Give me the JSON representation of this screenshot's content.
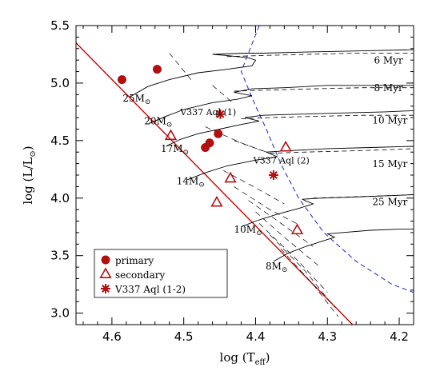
{
  "chart_data": {
    "type": "scatter",
    "title": "",
    "xlabel": "log (T",
    "xlabel_sub": "eff",
    "xlabel_close": ")",
    "ylabel": "log (L/L",
    "ylabel_close": ")",
    "xlim": [
      4.65,
      4.18
    ],
    "ylim": [
      2.9,
      5.5
    ],
    "x_reversed": true,
    "xticks": [
      4.6,
      4.5,
      4.4,
      4.3,
      4.2
    ],
    "xtick_labels": [
      "4.6",
      "4.5",
      "4.4",
      "4.3",
      "4.2"
    ],
    "yticks": [
      3.0,
      3.5,
      4.0,
      4.5,
      5.0,
      5.5
    ],
    "ytick_labels": [
      "3.0",
      "3.5",
      "4.0",
      "4.5",
      "5.0",
      "5.5"
    ],
    "colors": {
      "zams": "#cc0000",
      "points": "#b01010",
      "isochrone_guide": "#3333cc",
      "track": "#000000"
    },
    "zams_line": [
      [
        4.65,
        5.35
      ],
      [
        4.265,
        2.9
      ]
    ],
    "tracks": [
      {
        "mass_label": "25M",
        "label_at": [
          4.585,
          4.84
        ],
        "points": [
          [
            4.575,
            4.88
          ],
          [
            4.55,
            4.97
          ],
          [
            4.52,
            5.03
          ],
          [
            4.48,
            5.09
          ],
          [
            4.44,
            5.12
          ],
          [
            4.405,
            5.15
          ],
          [
            4.4,
            5.2
          ],
          [
            4.41,
            5.22
          ],
          [
            4.44,
            5.24
          ],
          [
            4.46,
            5.25
          ],
          [
            4.415,
            5.26
          ],
          [
            4.39,
            5.26
          ],
          [
            4.33,
            5.27
          ],
          [
            4.25,
            5.28
          ],
          [
            4.18,
            5.29
          ]
        ]
      },
      {
        "mass_label": "20M",
        "label_at": [
          4.555,
          4.64
        ],
        "points": [
          [
            4.548,
            4.65
          ],
          [
            4.525,
            4.71
          ],
          [
            4.5,
            4.77
          ],
          [
            4.46,
            4.83
          ],
          [
            4.425,
            4.86
          ],
          [
            4.405,
            4.89
          ],
          [
            4.43,
            4.92
          ],
          [
            4.405,
            4.95
          ],
          [
            4.36,
            4.96
          ],
          [
            4.3,
            4.98
          ],
          [
            4.24,
            4.98
          ],
          [
            4.18,
            4.98
          ]
        ]
      },
      {
        "mass_label": "17M",
        "label_at": [
          4.532,
          4.4
        ],
        "points": [
          [
            4.525,
            4.45
          ],
          [
            4.505,
            4.51
          ],
          [
            4.48,
            4.56
          ],
          [
            4.45,
            4.6
          ],
          [
            4.42,
            4.64
          ],
          [
            4.395,
            4.67
          ],
          [
            4.415,
            4.7
          ],
          [
            4.39,
            4.72
          ],
          [
            4.34,
            4.73
          ],
          [
            4.28,
            4.74
          ],
          [
            4.22,
            4.75
          ],
          [
            4.18,
            4.76
          ]
        ]
      },
      {
        "mass_label": "14M",
        "label_at": [
          4.51,
          4.12
        ],
        "points": [
          [
            4.495,
            4.16
          ],
          [
            4.47,
            4.22
          ],
          [
            4.44,
            4.28
          ],
          [
            4.4,
            4.33
          ],
          [
            4.37,
            4.36
          ],
          [
            4.385,
            4.4
          ],
          [
            4.36,
            4.41
          ],
          [
            4.3,
            4.43
          ],
          [
            4.24,
            4.44
          ],
          [
            4.18,
            4.45
          ]
        ]
      },
      {
        "mass_label": "10M",
        "label_at": [
          4.43,
          3.7
        ],
        "points": [
          [
            4.42,
            3.75
          ],
          [
            4.4,
            3.8
          ],
          [
            4.37,
            3.86
          ],
          [
            4.34,
            3.91
          ],
          [
            4.32,
            3.95
          ],
          [
            4.335,
            3.99
          ],
          [
            4.31,
            4.0
          ],
          [
            4.26,
            4.01
          ],
          [
            4.22,
            4.02
          ],
          [
            4.18,
            4.03
          ]
        ]
      },
      {
        "mass_label": "8M",
        "label_at": [
          4.386,
          3.38
        ],
        "points": [
          [
            4.375,
            3.45
          ],
          [
            4.355,
            3.52
          ],
          [
            4.33,
            3.58
          ],
          [
            4.31,
            3.62
          ],
          [
            4.29,
            3.66
          ],
          [
            4.3,
            3.69
          ],
          [
            4.28,
            3.7
          ],
          [
            4.24,
            3.72
          ],
          [
            4.2,
            3.73
          ],
          [
            4.18,
            3.73
          ]
        ]
      }
    ],
    "isochrones": [
      {
        "label": "6 Myr",
        "label_at": [
          4.215,
          5.17
        ],
        "points": [
          [
            4.44,
            5.23
          ],
          [
            4.39,
            5.24
          ],
          [
            4.33,
            5.25
          ],
          [
            4.26,
            5.26
          ],
          [
            4.18,
            5.26
          ]
        ]
      },
      {
        "label": "8 Myr",
        "label_at": [
          4.215,
          4.93
        ],
        "points": [
          [
            4.43,
            4.93
          ],
          [
            4.38,
            4.94
          ],
          [
            4.32,
            4.95
          ],
          [
            4.25,
            4.96
          ],
          [
            4.18,
            4.96
          ]
        ]
      },
      {
        "label": "10 Myr",
        "label_at": [
          4.213,
          4.65
        ],
        "points": [
          [
            4.42,
            4.69
          ],
          [
            4.38,
            4.7
          ],
          [
            4.32,
            4.71
          ],
          [
            4.25,
            4.72
          ],
          [
            4.18,
            4.72
          ]
        ]
      },
      {
        "label": "15 Myr",
        "label_at": [
          4.213,
          4.27
        ],
        "points": [
          [
            4.38,
            4.39
          ],
          [
            4.33,
            4.4
          ],
          [
            4.27,
            4.41
          ],
          [
            4.22,
            4.42
          ],
          [
            4.18,
            4.43
          ]
        ]
      },
      {
        "label": "25 Myr",
        "label_at": [
          4.213,
          3.94
        ],
        "points": [
          [
            4.32,
            4.0
          ],
          [
            4.27,
            4.01
          ],
          [
            4.22,
            4.02
          ],
          [
            4.18,
            4.03
          ]
        ]
      }
    ],
    "mid_dashes": [
      [
        [
          4.52,
          5.26
        ],
        [
          4.49,
          5.03
        ]
      ],
      [
        [
          4.46,
          4.98
        ],
        [
          4.43,
          4.82
        ]
      ],
      [
        [
          4.47,
          4.62
        ],
        [
          4.42,
          4.48
        ],
        [
          4.39,
          4.41
        ]
      ],
      [
        [
          4.43,
          4.5
        ],
        [
          4.38,
          4.39
        ]
      ],
      [
        [
          4.445,
          4.24
        ],
        [
          4.4,
          4.09
        ],
        [
          4.36,
          3.95
        ]
      ],
      [
        [
          4.43,
          4.1
        ],
        [
          4.38,
          3.9
        ],
        [
          4.34,
          3.77
        ]
      ],
      [
        [
          4.41,
          3.98
        ],
        [
          4.36,
          3.76
        ],
        [
          4.32,
          3.58
        ]
      ],
      [
        [
          4.4,
          3.88
        ],
        [
          4.36,
          3.66
        ],
        [
          4.31,
          3.4
        ]
      ],
      [
        [
          4.395,
          3.78
        ],
        [
          4.34,
          3.45
        ],
        [
          4.3,
          3.18
        ]
      ],
      [
        [
          4.38,
          3.68
        ],
        [
          4.33,
          3.36
        ],
        [
          4.29,
          3.05
        ]
      ],
      [
        [
          4.365,
          3.56
        ],
        [
          4.32,
          3.25
        ],
        [
          4.285,
          2.97
        ]
      ]
    ],
    "blue_dashed": [
      [
        4.395,
        5.5
      ],
      [
        4.42,
        5.1
      ],
      [
        4.4,
        4.8
      ],
      [
        4.385,
        4.6
      ],
      [
        4.365,
        4.3
      ],
      [
        4.34,
        4.0
      ],
      [
        4.305,
        3.7
      ],
      [
        4.26,
        3.45
      ],
      [
        4.21,
        3.25
      ],
      [
        4.18,
        3.18
      ]
    ],
    "series": [
      {
        "name": "primary",
        "marker": "filled-circle",
        "points": [
          [
            4.586,
            5.03
          ],
          [
            4.537,
            5.12
          ],
          [
            4.47,
            4.44
          ],
          [
            4.464,
            4.48
          ],
          [
            4.452,
            4.56
          ]
        ]
      },
      {
        "name": "secondary",
        "marker": "open-triangle",
        "points": [
          [
            4.518,
            4.54
          ],
          [
            4.358,
            4.44
          ],
          [
            4.435,
            4.17
          ],
          [
            4.454,
            3.96
          ],
          [
            4.342,
            3.72
          ]
        ]
      },
      {
        "name": "V337 Aql (1-2)",
        "marker": "asterisk",
        "points": [
          [
            4.449,
            4.73
          ],
          [
            4.375,
            4.2
          ]
        ]
      }
    ],
    "annotations": [
      {
        "text": "V337 Aql (1)",
        "at": [
          4.505,
          4.72
        ]
      },
      {
        "text": "V337 Aql (2)",
        "at": [
          4.403,
          4.3
        ]
      }
    ],
    "sun_symbol": "⊙",
    "legend_position": "bottom-left",
    "grid": false
  }
}
